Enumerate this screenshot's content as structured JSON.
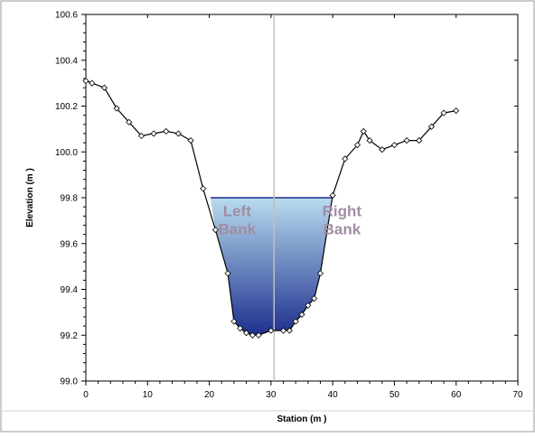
{
  "chart_data": {
    "type": "line",
    "title": "",
    "xlabel": "Station (m )",
    "ylabel": "Elevation (m )",
    "xlim": [
      0,
      70
    ],
    "ylim": [
      99.0,
      100.6
    ],
    "x_ticks": [
      0,
      10,
      20,
      30,
      40,
      50,
      60,
      70
    ],
    "y_ticks": [
      99.0,
      99.2,
      99.4,
      99.6,
      99.8,
      100.0,
      100.2,
      100.4,
      100.6
    ],
    "x_tick_labels": [
      "0",
      "10",
      "20",
      "30",
      "40",
      "50",
      "60",
      "70"
    ],
    "y_tick_labels": [
      "99.0",
      "99.2",
      "99.4",
      "99.6",
      "99.8",
      "100.0",
      "100.2",
      "100.4",
      "100.6"
    ],
    "grid": false,
    "legend": "none",
    "series": [
      {
        "x": [
          0,
          1,
          3,
          5,
          7,
          9,
          11,
          13,
          15,
          17,
          19,
          21,
          23,
          24,
          25,
          26,
          27,
          28,
          30,
          32,
          33,
          34,
          35,
          36,
          37,
          38,
          40,
          42,
          44,
          45,
          46,
          48,
          50,
          52,
          54,
          56,
          58,
          60
        ],
        "y": [
          100.31,
          100.3,
          100.28,
          100.19,
          100.13,
          100.07,
          100.08,
          100.09,
          100.08,
          100.05,
          99.84,
          99.66,
          99.47,
          99.26,
          99.23,
          99.21,
          99.2,
          99.2,
          99.22,
          99.22,
          99.22,
          99.26,
          99.29,
          99.33,
          99.36,
          99.47,
          99.81,
          99.97,
          100.03,
          100.09,
          100.05,
          100.01,
          100.03,
          100.05,
          100.05,
          100.11,
          100.17,
          100.18
        ],
        "color": "#000000"
      }
    ],
    "water_surface": {
      "elevation": 99.8,
      "x_start": 20.2,
      "x_end": 40.0
    },
    "water_fill_colors": [
      "#b9dcef",
      "#1d2f8e"
    ],
    "reference_line": {
      "x": 30.5,
      "color": "#bfbfbf"
    },
    "annotations": [
      {
        "text": "Left",
        "x": 24.5,
        "y": 99.72,
        "color": "#a08da2"
      },
      {
        "text": "Bank",
        "x": 24.5,
        "y": 99.64,
        "color": "#a08da2"
      },
      {
        "text": "Right",
        "x": 41.5,
        "y": 99.72,
        "color": "#a08da2"
      },
      {
        "text": "Bank",
        "x": 41.5,
        "y": 99.64,
        "color": "#a08da2"
      }
    ]
  }
}
